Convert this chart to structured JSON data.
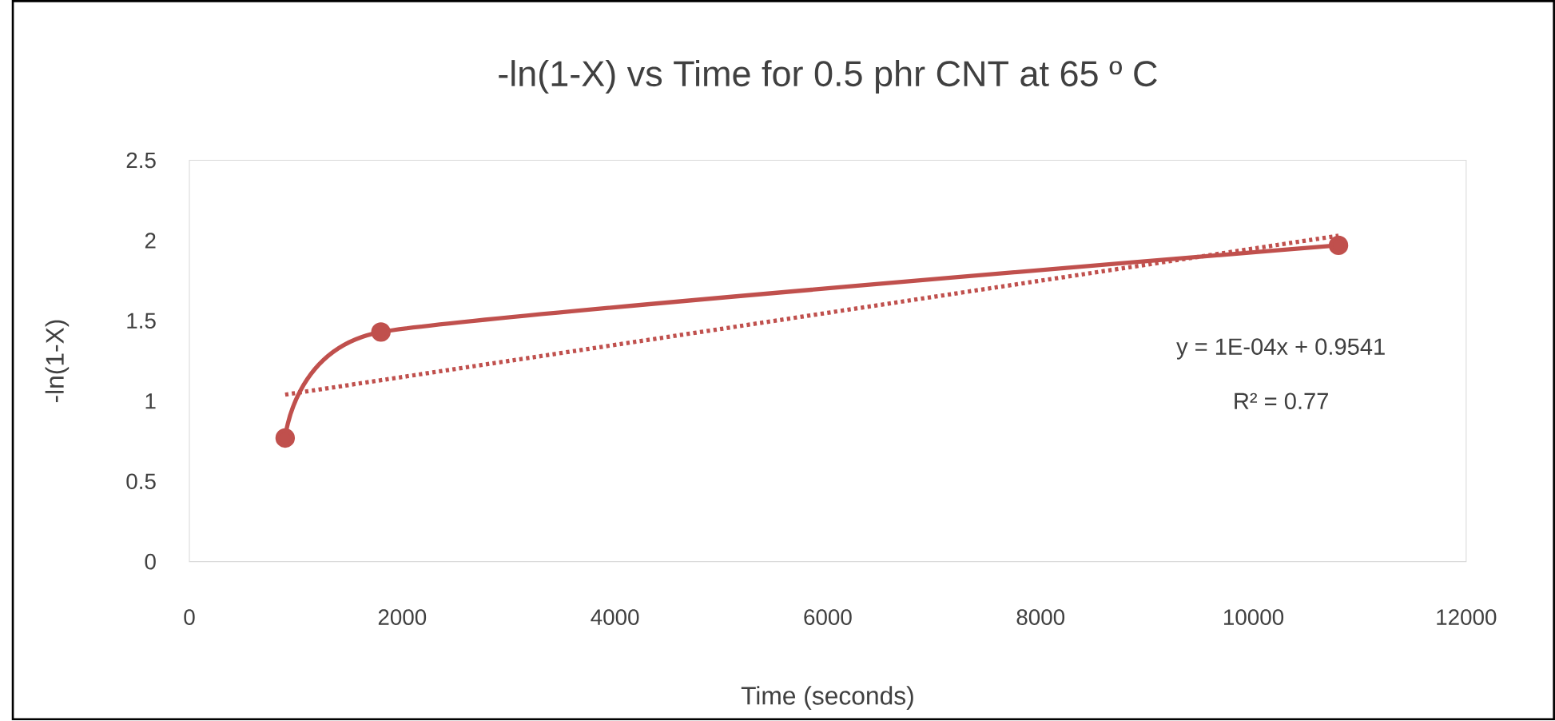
{
  "chart_data": {
    "type": "line",
    "title": "-ln(1-X) vs Time for 0.5 phr CNT at 65 º C",
    "xlabel": "Time (seconds)",
    "ylabel": "-ln(1-X)",
    "annotations": [
      "y = 1E-04x + 0.9541",
      "R² = 0.77"
    ],
    "xlim": [
      0,
      12000
    ],
    "ylim": [
      0,
      2.5
    ],
    "xticks": [
      0,
      2000,
      4000,
      6000,
      8000,
      10000,
      12000
    ],
    "yticks": [
      0,
      0.5,
      1,
      1.5,
      2,
      2.5
    ],
    "series": [
      {
        "color": "#c0504d",
        "x": [
          900,
          1800,
          10800
        ],
        "values": [
          0.77,
          1.43,
          1.97
        ],
        "marker": "circle",
        "line_style": "solid"
      },
      {
        "color": "#c0504d",
        "x": [
          900,
          10800
        ],
        "values": [
          1.04,
          2.03
        ],
        "marker": "none",
        "line_style": "dotted"
      }
    ]
  }
}
